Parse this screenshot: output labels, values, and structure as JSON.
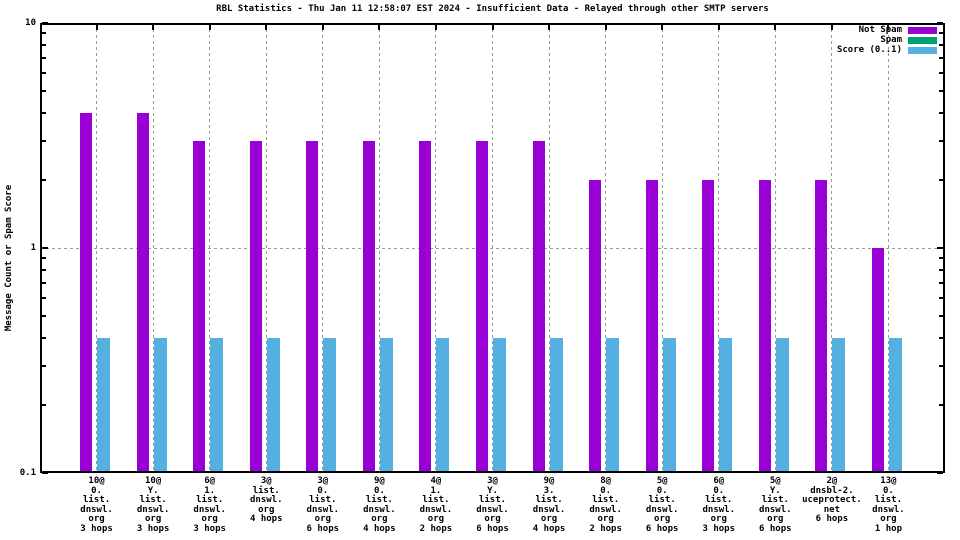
{
  "chart_data": {
    "type": "bar",
    "title": "RBL Statistics - Thu Jan 11 12:58:07 EST 2024 - Insufficient Data - Relayed through other SMTP servers",
    "xlabel": "",
    "ylabel": "Message Count or Spam Score",
    "y_scale": "log",
    "ylim": [
      0.1,
      10
    ],
    "y_major_tick_values": [
      10,
      1,
      0.1
    ],
    "y_major_tick_labels": [
      "10",
      "1",
      "0.1"
    ],
    "grid": "dashed gray vertical lines at category centers and horizontal line at y=1",
    "legend_position": "top-right inside plot",
    "colors": {
      "background": "#ffffff",
      "border": "#000000",
      "grid": "#9b9b9b",
      "text": "#000000"
    },
    "categories": [
      [
        "10@",
        "0.",
        "list.",
        "dnswl.",
        "org",
        "3 hops"
      ],
      [
        "10@",
        "Y.",
        "list.",
        "dnswl.",
        "org",
        "3 hops"
      ],
      [
        "6@",
        "1.",
        "list.",
        "dnswl.",
        "org",
        "3 hops"
      ],
      [
        "3@",
        "list.",
        "dnswl.",
        "org",
        "4 hops"
      ],
      [
        "3@",
        "0.",
        "list.",
        "dnswl.",
        "org",
        "6 hops"
      ],
      [
        "9@",
        "0.",
        "list.",
        "dnswl.",
        "org",
        "4 hops"
      ],
      [
        "4@",
        "1.",
        "list.",
        "dnswl.",
        "org",
        "2 hops"
      ],
      [
        "3@",
        "Y.",
        "list.",
        "dnswl.",
        "org",
        "6 hops"
      ],
      [
        "9@",
        "3.",
        "list.",
        "dnswl.",
        "org",
        "4 hops"
      ],
      [
        "8@",
        "0.",
        "list.",
        "dnswl.",
        "org",
        "2 hops"
      ],
      [
        "5@",
        "0.",
        "list.",
        "dnswl.",
        "org",
        "6 hops"
      ],
      [
        "6@",
        "0.",
        "list.",
        "dnswl.",
        "org",
        "3 hops"
      ],
      [
        "5@",
        "Y.",
        "list.",
        "dnswl.",
        "org",
        "6 hops"
      ],
      [
        "2@",
        "dnsbl-2.",
        "uceprotect.",
        "net",
        "6 hops"
      ],
      [
        "13@",
        "0.",
        "list.",
        "dnswl.",
        "org",
        "1 hop"
      ]
    ],
    "series": [
      {
        "name": "Not Spam",
        "color": "#9800d6",
        "values": [
          4,
          4,
          3,
          3,
          3,
          3,
          3,
          3,
          3,
          2,
          2,
          2,
          2,
          2,
          1
        ]
      },
      {
        "name": "Spam",
        "color": "#00a070",
        "values": [
          0,
          0,
          0,
          0,
          0,
          0,
          0,
          0,
          0,
          0,
          0,
          0,
          0,
          0,
          0
        ]
      },
      {
        "name": "Score (0..1)",
        "color": "#55b0e2",
        "values": [
          0.4,
          0.4,
          0.4,
          0.4,
          0.4,
          0.4,
          0.4,
          0.4,
          0.4,
          0.4,
          0.4,
          0.4,
          0.4,
          0.4,
          0.4
        ]
      }
    ]
  }
}
